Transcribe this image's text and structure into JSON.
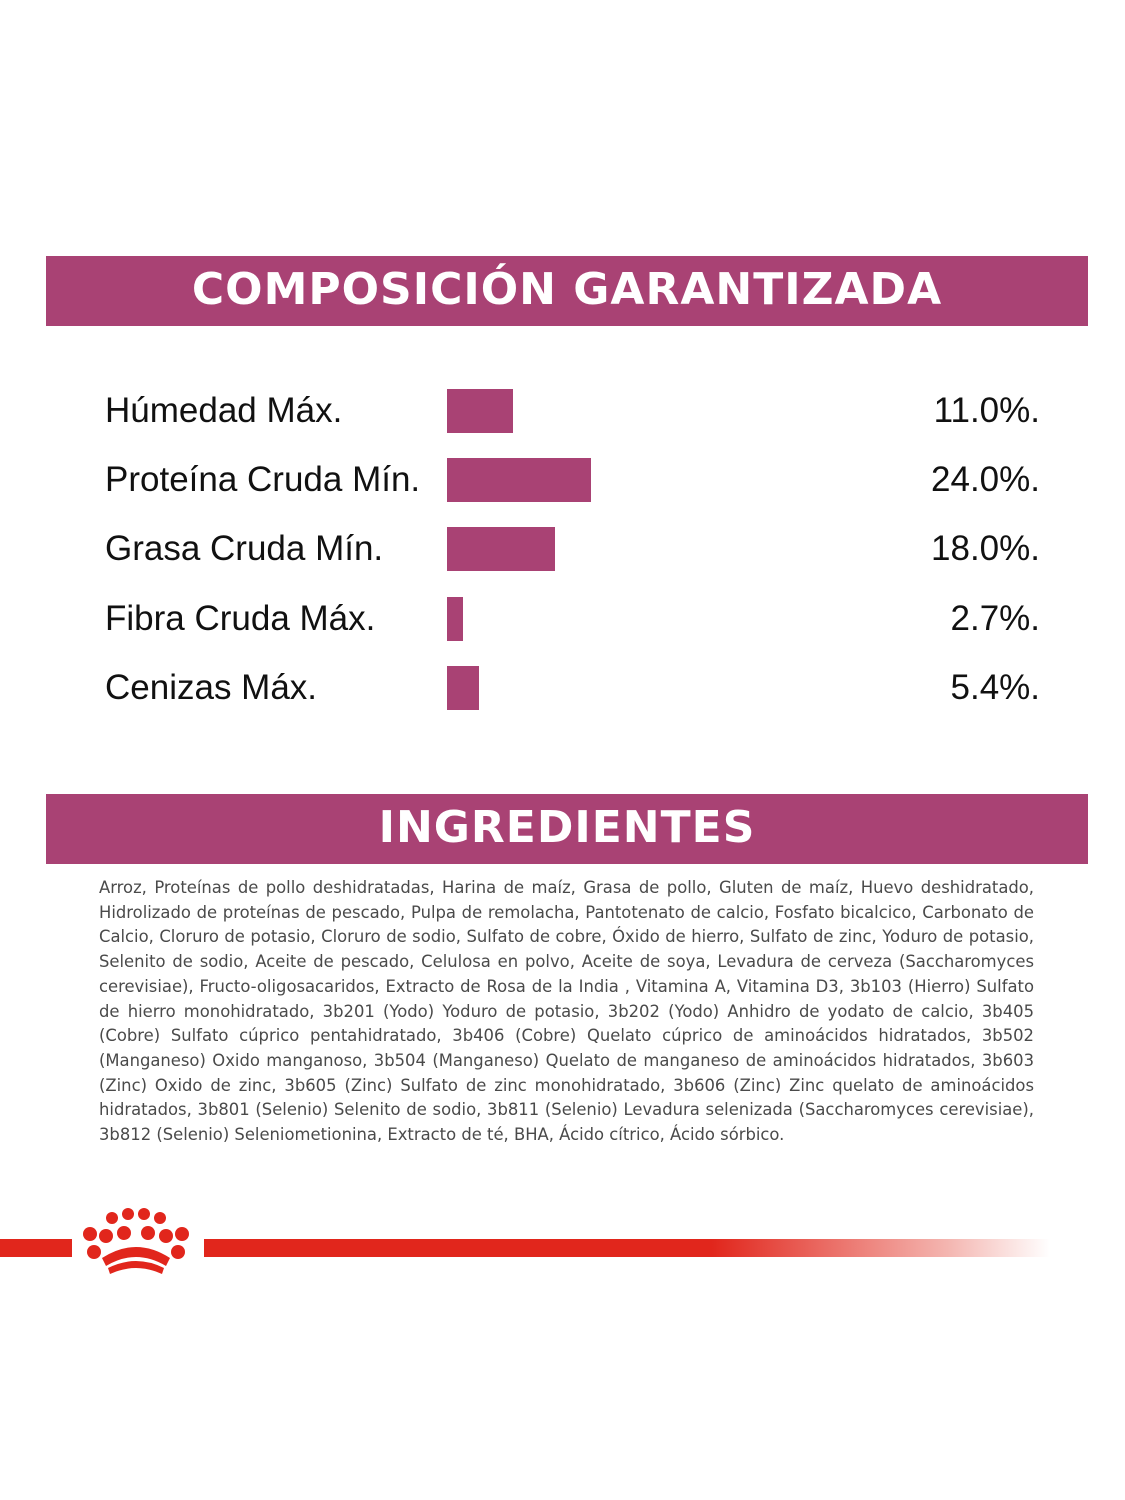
{
  "composition": {
    "title": "COMPOSICIÓN GARANTIZADA",
    "rows": [
      {
        "label": "Húmedad Máx.",
        "value": "11.0%.",
        "percent": 11.0
      },
      {
        "label": "Proteína Cruda Mín.",
        "value": "24.0%.",
        "percent": 24.0
      },
      {
        "label": "Grasa Cruda Mín.",
        "value": "18.0%.",
        "percent": 18.0
      },
      {
        "label": "Fibra Cruda Máx.",
        "value": "2.7%.",
        "percent": 2.7
      },
      {
        "label": "Cenizas Máx.",
        "value": "5.4%.",
        "percent": 5.4
      }
    ]
  },
  "ingredients": {
    "title": "INGREDIENTES",
    "text": "Arroz, Proteínas de pollo deshidratadas, Harina de maíz, Grasa de pollo, Gluten de maíz, Huevo deshidratado, Hidrolizado de proteínas de pescado, Pulpa de remolacha, Pantotenato de calcio, Fosfato bicalcico, Carbonato de Calcio, Cloruro de potasio, Cloruro de sodio, Sulfato de cobre, Óxido de hierro, Sulfato de zinc, Yoduro de potasio, Selenito de sodio, Aceite de pescado, Celulosa en polvo, Aceite de soya, Levadura de cerveza (Saccharomyces cerevisiae), Fructo-oligosacaridos, Extracto de Rosa de la India , Vitamina A, Vitamina D3, 3b103 (Hierro) Sulfato de hierro monohidratado, 3b201 (Yodo) Yoduro de potasio, 3b202 (Yodo) Anhidro de yodato de calcio, 3b405 (Cobre) Sulfato cúprico pentahidratado, 3b406 (Cobre) Quelato cúprico de aminoácidos hidratados, 3b502 (Manganeso) Oxido manganoso, 3b504 (Manganeso) Quelato de manganeso de aminoácidos hidratados, 3b603 (Zinc) Oxido de zinc, 3b605 (Zinc) Sulfato de zinc monohidratado, 3b606 (Zinc)  Zinc quelato de aminoácidos hidratados, 3b801 (Selenio) Selenito de sodio, 3b811 (Selenio) Levadura selenizada (Saccharomyces cerevisiae), 3b812 (Selenio) Seleniometionina, Extracto de té, BHA, Ácido cítrico, Ácido sórbico."
  },
  "colors": {
    "accent": "#a94274",
    "brand_red": "#e1261c"
  },
  "icons": {
    "brand": "royal-canin-crown-icon"
  }
}
